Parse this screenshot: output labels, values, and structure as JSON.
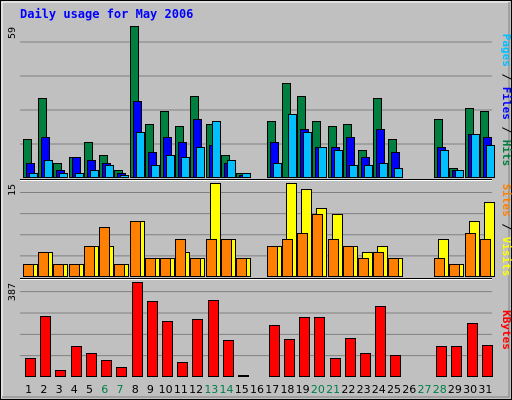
{
  "chart_data": {
    "type": "bar",
    "title": "Daily usage for May 2006",
    "days": [
      "1",
      "2",
      "3",
      "4",
      "5",
      "6",
      "7",
      "8",
      "9",
      "10",
      "11",
      "12",
      "13",
      "14",
      "15",
      "16",
      "17",
      "18",
      "19",
      "20",
      "21",
      "22",
      "23",
      "24",
      "25",
      "26",
      "27",
      "28",
      "29",
      "30",
      "31"
    ],
    "weekend_days": [
      6,
      7,
      13,
      14,
      20,
      21,
      27,
      28
    ],
    "panels": [
      {
        "id": "hits",
        "max_label": "59",
        "ymax": 59,
        "legend": [
          {
            "text": "Pages",
            "color": "#00C0FF"
          },
          {
            "text": " / ",
            "color": "#000000"
          },
          {
            "text": "Files",
            "color": "#0000FF"
          },
          {
            "text": " / ",
            "color": "#000000"
          },
          {
            "text": "Hits",
            "color": "#008040"
          }
        ],
        "series": [
          {
            "name": "Hits",
            "color": "#008040",
            "values": [
              15,
              31,
              6,
              8,
              14,
              9,
              3,
              59,
              21,
              26,
              20,
              32,
              21,
              9,
              2,
              0,
              22,
              37,
              32,
              22,
              20,
              21,
              11,
              31,
              15,
              0,
              0,
              23,
              4,
              27,
              26
            ]
          },
          {
            "name": "Files",
            "color": "#0000FF",
            "values": [
              6,
              16,
              3,
              8,
              7,
              6,
              2,
              30,
              10,
              16,
              14,
              23,
              13,
              6,
              1,
              0,
              14,
              0,
              19,
              12,
              12,
              16,
              8,
              19,
              10,
              0,
              0,
              12,
              3,
              17,
              16
            ]
          },
          {
            "name": "Pages",
            "color": "#00C0FF",
            "values": [
              2,
              7,
              2,
              2,
              3,
              5,
              1,
              18,
              5,
              9,
              8,
              12,
              22,
              7,
              2,
              0,
              6,
              25,
              18,
              12,
              11,
              5,
              5,
              6,
              4,
              0,
              0,
              11,
              3,
              17,
              13
            ]
          }
        ]
      },
      {
        "id": "visits",
        "max_label": "15",
        "ymax": 15,
        "legend": [
          {
            "text": "Sites",
            "color": "#FF8000"
          },
          {
            "text": " / ",
            "color": "#000000"
          },
          {
            "text": "Visits",
            "color": "#FFFF00"
          }
        ],
        "series": [
          {
            "name": "Visits",
            "color": "#FFFF00",
            "values": [
              2,
              4,
              2,
              2,
              5,
              5,
              2,
              9,
              3,
              3,
              4,
              3,
              15,
              6,
              3,
              0,
              5,
              15,
              14,
              11,
              10,
              5,
              4,
              5,
              3,
              0,
              0,
              6,
              2,
              9,
              12
            ]
          },
          {
            "name": "Sites",
            "color": "#FF8000",
            "values": [
              2,
              4,
              2,
              2,
              5,
              8,
              2,
              9,
              3,
              3,
              6,
              3,
              6,
              6,
              3,
              0,
              5,
              6,
              7,
              10,
              6,
              5,
              3,
              4,
              3,
              0,
              0,
              3,
              2,
              7,
              6
            ]
          }
        ]
      },
      {
        "id": "kbytes",
        "max_label": "387",
        "ymax": 387,
        "legend": [
          {
            "text": "KBytes",
            "color": "#FF0000"
          }
        ],
        "series": [
          {
            "name": "KBytes",
            "color": "#FF0000",
            "values": [
              78,
              248,
              28,
              128,
              98,
              68,
              40,
              387,
              308,
              228,
              60,
              238,
              313,
              152,
              8,
              0,
              213,
              155,
              245,
              245,
              78,
              158,
              98,
              288,
              88,
              0,
              0,
              128,
              128,
              218,
              130
            ]
          }
        ]
      }
    ],
    "colors": {
      "background": "#C0C0C0",
      "grid": "#808080",
      "title": "#0000FF",
      "weekend_label": "#00804A",
      "weekday_label": "#000000"
    }
  }
}
